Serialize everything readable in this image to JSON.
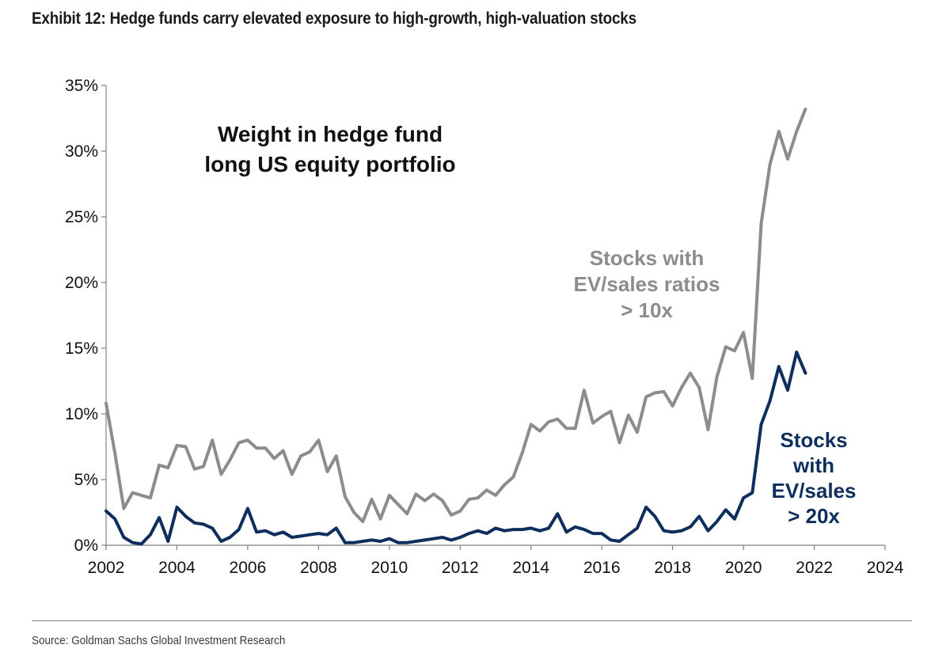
{
  "title": "Exhibit 12: Hedge funds carry elevated exposure to high-growth, high-valuation stocks",
  "source": "Source: Goldman Sachs Global Investment Research",
  "chart_data": {
    "type": "line",
    "title": "",
    "inner_title": [
      "Weight in hedge fund",
      "long US equity portfolio"
    ],
    "xlabel": "",
    "ylabel": "",
    "xlim": [
      2002,
      2024
    ],
    "ylim": [
      0,
      35
    ],
    "x_ticks": [
      "2002",
      "2004",
      "2006",
      "2008",
      "2010",
      "2012",
      "2014",
      "2016",
      "2018",
      "2020",
      "2022",
      "2024"
    ],
    "y_ticks": [
      "0%",
      "5%",
      "10%",
      "15%",
      "20%",
      "25%",
      "30%",
      "35%"
    ],
    "grid": false,
    "series": [
      {
        "name": "Stocks with EV/sales ratios > 10x",
        "label_lines": [
          "Stocks with",
          "EV/sales ratios",
          "> 10x"
        ],
        "color": "#8c8c8c",
        "x": [
          2002.0,
          2002.25,
          2002.5,
          2002.75,
          2003.0,
          2003.25,
          2003.5,
          2003.75,
          2004.0,
          2004.25,
          2004.5,
          2004.75,
          2005.0,
          2005.25,
          2005.5,
          2005.75,
          2006.0,
          2006.25,
          2006.5,
          2006.75,
          2007.0,
          2007.25,
          2007.5,
          2007.75,
          2008.0,
          2008.25,
          2008.5,
          2008.75,
          2009.0,
          2009.25,
          2009.5,
          2009.75,
          2010.0,
          2010.25,
          2010.5,
          2010.75,
          2011.0,
          2011.25,
          2011.5,
          2011.75,
          2012.0,
          2012.25,
          2012.5,
          2012.75,
          2013.0,
          2013.25,
          2013.5,
          2013.75,
          2014.0,
          2014.25,
          2014.5,
          2014.75,
          2015.0,
          2015.25,
          2015.5,
          2015.75,
          2016.0,
          2016.25,
          2016.5,
          2016.75,
          2017.0,
          2017.25,
          2017.5,
          2017.75,
          2018.0,
          2018.25,
          2018.5,
          2018.75,
          2019.0,
          2019.25,
          2019.5,
          2019.75,
          2020.0,
          2020.25,
          2020.5,
          2020.75,
          2021.0,
          2021.25,
          2021.5,
          2021.75
        ],
        "values": [
          10.8,
          7.0,
          2.8,
          4.0,
          3.8,
          3.6,
          6.1,
          5.9,
          7.6,
          7.5,
          5.8,
          6.0,
          8.0,
          5.4,
          6.5,
          7.8,
          8.0,
          7.4,
          7.4,
          6.6,
          7.2,
          5.4,
          6.8,
          7.1,
          8.0,
          5.6,
          6.8,
          3.7,
          2.5,
          1.8,
          3.5,
          2.0,
          3.8,
          3.1,
          2.4,
          3.9,
          3.4,
          3.9,
          3.4,
          2.3,
          2.6,
          3.5,
          3.6,
          4.2,
          3.8,
          4.6,
          5.2,
          7.0,
          9.2,
          8.7,
          9.4,
          9.6,
          8.9,
          8.9,
          11.8,
          9.3,
          9.8,
          10.2,
          7.8,
          9.9,
          8.6,
          11.3,
          11.6,
          11.7,
          10.6,
          12.0,
          13.1,
          12.0,
          8.8,
          12.8,
          15.1,
          14.8,
          16.2,
          12.7,
          24.5,
          29.0,
          31.5,
          29.4,
          31.5,
          33.2
        ]
      },
      {
        "name": "Stocks with EV/sales > 20x",
        "label_lines": [
          "Stocks",
          "with",
          "EV/sales",
          "> 20x"
        ],
        "color": "#0e2e5e",
        "x": [
          2002.0,
          2002.25,
          2002.5,
          2002.75,
          2003.0,
          2003.25,
          2003.5,
          2003.75,
          2004.0,
          2004.25,
          2004.5,
          2004.75,
          2005.0,
          2005.25,
          2005.5,
          2005.75,
          2006.0,
          2006.25,
          2006.5,
          2006.75,
          2007.0,
          2007.25,
          2007.5,
          2007.75,
          2008.0,
          2008.25,
          2008.5,
          2008.75,
          2009.0,
          2009.25,
          2009.5,
          2009.75,
          2010.0,
          2010.25,
          2010.5,
          2010.75,
          2011.0,
          2011.25,
          2011.5,
          2011.75,
          2012.0,
          2012.25,
          2012.5,
          2012.75,
          2013.0,
          2013.25,
          2013.5,
          2013.75,
          2014.0,
          2014.25,
          2014.5,
          2014.75,
          2015.0,
          2015.25,
          2015.5,
          2015.75,
          2016.0,
          2016.25,
          2016.5,
          2016.75,
          2017.0,
          2017.25,
          2017.5,
          2017.75,
          2018.0,
          2018.25,
          2018.5,
          2018.75,
          2019.0,
          2019.25,
          2019.5,
          2019.75,
          2020.0,
          2020.25,
          2020.5,
          2020.75,
          2021.0,
          2021.25,
          2021.5,
          2021.75
        ],
        "values": [
          2.6,
          2.0,
          0.6,
          0.2,
          0.1,
          0.8,
          2.1,
          0.3,
          2.9,
          2.2,
          1.7,
          1.6,
          1.3,
          0.3,
          0.6,
          1.2,
          2.8,
          1.0,
          1.1,
          0.8,
          1.0,
          0.6,
          0.7,
          0.8,
          0.9,
          0.8,
          1.3,
          0.2,
          0.2,
          0.3,
          0.4,
          0.3,
          0.5,
          0.2,
          0.2,
          0.3,
          0.4,
          0.5,
          0.6,
          0.4,
          0.6,
          0.9,
          1.1,
          0.9,
          1.3,
          1.1,
          1.2,
          1.2,
          1.3,
          1.1,
          1.3,
          2.4,
          1.0,
          1.4,
          1.2,
          0.9,
          0.9,
          0.4,
          0.3,
          0.8,
          1.3,
          2.9,
          2.2,
          1.1,
          1.0,
          1.1,
          1.4,
          2.2,
          1.1,
          1.8,
          2.7,
          2.0,
          3.6,
          4.0,
          9.2,
          11.0,
          13.6,
          11.8,
          14.7,
          13.1
        ]
      }
    ]
  }
}
